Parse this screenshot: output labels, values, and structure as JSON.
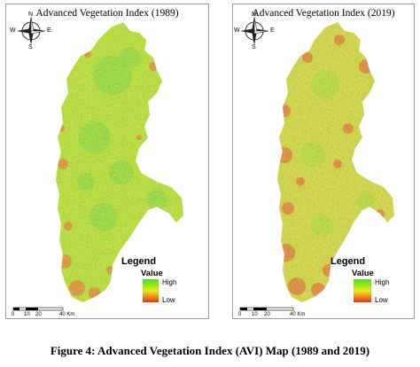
{
  "maps": [
    {
      "title": "Advanced Vegetation Index (1989)",
      "legend": {
        "title": "Legend",
        "value_label": "Value",
        "high": "High",
        "low": "Low"
      },
      "scale": {
        "ticks": [
          "0",
          "10",
          "20",
          "40 Km"
        ]
      },
      "compass": {
        "n": "N",
        "s": "S",
        "e": "E",
        "w": "W"
      },
      "colors": {
        "dominant": "#b7e61e",
        "secondary": "#8ede28",
        "hotspot": "#ec7a1e"
      }
    },
    {
      "title": "Advanced  Vegetation Index (2019)",
      "legend": {
        "title": "Legend",
        "value_label": "Value",
        "high": "High",
        "low": "Low"
      },
      "scale": {
        "ticks": [
          "0",
          "10",
          "20",
          "40 Km"
        ]
      },
      "compass": {
        "n": "N",
        "s": "S",
        "e": "E",
        "w": "W"
      },
      "colors": {
        "dominant": "#d6dc28",
        "secondary": "#b3e21f",
        "hotspot": "#ea6a1c"
      }
    }
  ],
  "legend_colors": {
    "high": "#3ce61e",
    "mid": "#ece81c",
    "low": "#e8321a"
  },
  "caption": "Figure 4: Advanced Vegetation Index (AVI) Map (1989 and 2019)"
}
